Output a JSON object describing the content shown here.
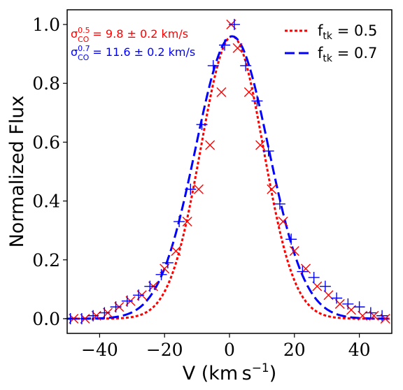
{
  "chart_data": {
    "type": "line",
    "xlabel": {
      "main": "V (km s",
      "sup": "−1",
      "close": ")"
    },
    "ylabel": "Normalized Flux",
    "xlim": [
      -50,
      50
    ],
    "ylim": [
      -0.05,
      1.05
    ],
    "xticks": [
      -40,
      -20,
      0,
      20,
      40
    ],
    "xtick_labels": [
      "−40",
      "−20",
      "0",
      "20",
      "40"
    ],
    "yticks": [
      0.0,
      0.2,
      0.4,
      0.6,
      0.8,
      1.0
    ],
    "ytick_labels": [
      "0.0",
      "0.2",
      "0.4",
      "0.6",
      "0.8",
      "1.0"
    ],
    "grid": false,
    "legend_position": "top-right",
    "annotations": [
      {
        "sym": "σ",
        "sup": "0.5",
        "sub": "CO",
        "text": " = 9.8 ± 0.2 km/s",
        "color": "#ff0000"
      },
      {
        "sym": "σ",
        "sup": "0.7",
        "sub": "CO",
        "text": " = 11.6 ± 0.2 km/s",
        "color": "#0000ff"
      }
    ],
    "series": [
      {
        "name_main": "f",
        "name_sub": "tk",
        "name_rest": " = 0.5",
        "color": "#ff0000",
        "style": "dotted",
        "marker": "x",
        "curve": {
          "center": 0.8,
          "sigma": 9.6,
          "amplitude": 0.96
        },
        "x": [
          -48,
          -44.5,
          -41,
          -37.5,
          -34,
          -30.5,
          -27,
          -23.5,
          -20,
          -16.5,
          -13,
          -9.5,
          -6,
          -2.5,
          0.5,
          2.5,
          6,
          9.5,
          13,
          16.5,
          20,
          23.5,
          27,
          30.5,
          34,
          37.5,
          41,
          44.5,
          48
        ],
        "y": [
          0.0,
          0.0,
          0.01,
          0.02,
          0.04,
          0.06,
          0.08,
          0.11,
          0.17,
          0.23,
          0.33,
          0.44,
          0.59,
          0.77,
          1.0,
          0.92,
          0.77,
          0.59,
          0.44,
          0.33,
          0.23,
          0.17,
          0.11,
          0.08,
          0.05,
          0.03,
          0.01,
          0.01,
          0.0
        ]
      },
      {
        "name_main": "f",
        "name_sub": "tk",
        "name_rest": " = 0.7",
        "color": "#0000ff",
        "style": "dashed",
        "marker": "+",
        "curve": {
          "center": 0.8,
          "sigma": 11.2,
          "amplitude": 0.96
        },
        "x": [
          -49,
          -45.5,
          -42,
          -38.5,
          -35,
          -31.5,
          -28,
          -24.5,
          -21,
          -19,
          -15.5,
          -12,
          -8.5,
          -5,
          -1.5,
          1.5,
          5,
          8.5,
          12,
          15.5,
          19,
          22.5,
          26,
          29.5,
          33,
          36.5,
          40,
          43.5,
          47
        ],
        "y": [
          0.0,
          0.0,
          0.01,
          0.02,
          0.04,
          0.06,
          0.08,
          0.11,
          0.15,
          0.19,
          0.33,
          0.44,
          0.66,
          0.86,
          0.93,
          1.0,
          0.86,
          0.74,
          0.57,
          0.39,
          0.27,
          0.16,
          0.14,
          0.11,
          0.07,
          0.05,
          0.04,
          0.02,
          0.01
        ]
      }
    ]
  }
}
